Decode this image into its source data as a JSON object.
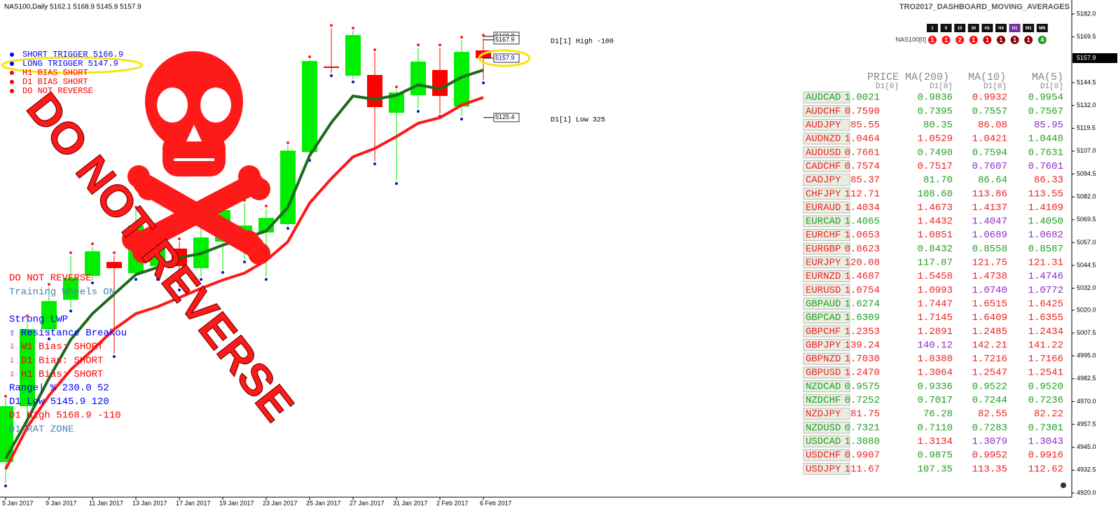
{
  "header": {
    "symbol": "NAS100,Daily  5162.1 5168.9 5145.9 5157.9",
    "indicator": "TRO2017_DASHBOARD_MOVING_AVERAGES"
  },
  "timeframes": {
    "labels": [
      "1",
      "5",
      "15",
      "30",
      "H1",
      "H4",
      "D1",
      "W1",
      "MN"
    ],
    "active": "D1",
    "symbol": "NAS100[0]",
    "signals": [
      {
        "text": "1",
        "color": "#ff1010"
      },
      {
        "text": "1",
        "color": "#ff1010"
      },
      {
        "text": "2",
        "color": "#ff1010"
      },
      {
        "text": "1",
        "color": "#ff1010"
      },
      {
        "text": "1",
        "color": "#d00000"
      },
      {
        "text": "1",
        "color": "#8b0000"
      },
      {
        "text": "1",
        "color": "#8b0000"
      },
      {
        "text": "1",
        "color": "#8b0000"
      },
      {
        "text": "4",
        "color": "#1a9a1a"
      }
    ]
  },
  "legend": [
    {
      "text": "SHORT TRIGGER 5166.9",
      "color": "#0000ff"
    },
    {
      "text": "LONG TRIGGER  5147.9",
      "color": "#0000ff"
    },
    {
      "text": "H1 BIAS SHORT",
      "color": "#ff0000"
    },
    {
      "text": "D1 BIAS SHORT",
      "color": "#ff0000"
    },
    {
      "text": "DO NOT REVERSE",
      "color": "#ff0000"
    }
  ],
  "warning": "DO NOT REVERSE",
  "info": [
    {
      "text": "DO NOT REVERSE",
      "color": "#ff0000"
    },
    {
      "text": "Training Wheels ON",
      "color": "#4682b4"
    },
    {
      "text": "Strong LWP",
      "color": "#0000ff"
    },
    {
      "text": "⇧ Resistance Breakou",
      "color": "#0000ff"
    },
    {
      "text": "⇩ W1 Bias: SHORT",
      "color": "#ff0000"
    },
    {
      "text": "⇩ D1 Bias: SHORT",
      "color": "#ff0000"
    },
    {
      "text": "⇩ H1 Bias: SHORT",
      "color": "#ff0000"
    },
    {
      "text": "Range| % 230.0    52",
      "color": "#0000ff"
    },
    {
      "text": "D1 Low   5145.9  120",
      "color": "#0000ff"
    },
    {
      "text": "D1 High  5168.9 -110",
      "color": "#ff0000"
    },
    {
      "text": "D1 RAT ZONE",
      "color": "#4682b4"
    }
  ],
  "chart": {
    "ylim": [
      4917.7,
      5189.7
    ],
    "yticks": [
      {
        "value": 5182,
        "label": "5182.0"
      },
      5169.5,
      5144.5,
      {
        "value": 5132,
        "label": "5132.0"
      },
      5119.5,
      {
        "value": 5107,
        "label": "5107.0"
      },
      5094.5,
      {
        "value": 5082,
        "label": "5082.0"
      },
      5069.5,
      {
        "value": 5057,
        "label": "5057.0"
      },
      5044.5,
      {
        "value": 5032,
        "label": "5032.0"
      },
      {
        "value": 5020,
        "label": "5020.0"
      },
      5007.5,
      {
        "value": 4995,
        "label": "4995.0"
      },
      4982.5,
      {
        "value": 4970,
        "label": "4970.0"
      },
      4957.5,
      {
        "value": 4945,
        "label": "4945.0"
      },
      4932.5,
      {
        "value": 4920,
        "label": "4920.0"
      }
    ],
    "bull_color": "#00ee00",
    "bear_color": "#ff0000",
    "candles": [
      {
        "open": 4936.9,
        "high": 4971.4,
        "low": 4925.4,
        "close": 4967.5
      },
      {
        "open": 4967.5,
        "high": 5015.4,
        "low": 4958.0,
        "close": 5009.6
      },
      {
        "open": 5009.6,
        "high": 5032.6,
        "low": 5005.8,
        "close": 5025.0
      },
      {
        "open": 5025.7,
        "high": 5049.9,
        "low": 5021.1,
        "close": 5037.6
      },
      {
        "open": 5038.8,
        "high": 5054.8,
        "low": 5036.5,
        "close": 5052.2
      },
      {
        "open": 5046.4,
        "high": 5049.9,
        "low": 4996.2,
        "close": 5043.0
      },
      {
        "open": 5040.3,
        "high": 5074.8,
        "low": 5038.4,
        "close": 5066.3
      },
      {
        "open": 5044.1,
        "high": 5059.4,
        "low": 5038.4,
        "close": 5053.7
      },
      {
        "open": 5053.7,
        "high": 5057.5,
        "low": 5032.6,
        "close": 5044.1
      },
      {
        "open": 5043.0,
        "high": 5067.1,
        "low": 5038.4,
        "close": 5059.8
      },
      {
        "open": 5057.5,
        "high": 5080.5,
        "low": 5042.2,
        "close": 5074.8
      },
      {
        "open": 5057.5,
        "high": 5078.6,
        "low": 5047.9,
        "close": 5066.3
      },
      {
        "open": 5062.5,
        "high": 5075.5,
        "low": 5038.4,
        "close": 5070.5
      },
      {
        "open": 5067.1,
        "high": 5110.0,
        "low": 5066.3,
        "close": 5107.3
      },
      {
        "open": 5106.5,
        "high": 5157.1,
        "low": 5103.5,
        "close": 5156.3
      },
      {
        "open": 5153.3,
        "high": 5174.3,
        "low": 5149.8,
        "close": 5152.9
      },
      {
        "open": 5148.3,
        "high": 5172.8,
        "low": 5146.4,
        "close": 5170.5
      },
      {
        "open": 5148.7,
        "high": 5160.9,
        "low": 5101.6,
        "close": 5131.1
      },
      {
        "open": 5128.0,
        "high": 5140.6,
        "low": 5090.8,
        "close": 5139.1
      },
      {
        "open": 5137.6,
        "high": 5163.6,
        "low": 5130.3,
        "close": 5156.0
      },
      {
        "open": 5151.4,
        "high": 5163.6,
        "low": 5127.6,
        "close": 5137.2
      },
      {
        "open": 5131.4,
        "high": 5167.8,
        "low": 5126.1,
        "close": 5161.3
      },
      {
        "open": 5162.1,
        "high": 5168.9,
        "low": 5145.9,
        "close": 5157.9
      }
    ],
    "dates": [
      "5 Jan 2017",
      null,
      "9 Jan 2017",
      null,
      "11 Jan 2017",
      null,
      "13 Jan 2017",
      null,
      "17 Jan 2017",
      null,
      "19 Jan 2017",
      null,
      "23 Jan 2017",
      null,
      "25 Jan 2017",
      null,
      "27 Jan 2017",
      null,
      "31 Jan 2017",
      null,
      "2 Feb 2017",
      null,
      "6 Feb 2017"
    ],
    "ma": [
      {
        "color": "#1c6b1c",
        "values": [
          4938.8,
          4959.9,
          4982.8,
          5003.9,
          5018.1,
          5028.8,
          5039.5,
          5043.4,
          5048.7,
          5051.0,
          5055.6,
          5059.4,
          5063.3,
          5076.3,
          5104.6,
          5122.6,
          5137.2,
          5135.3,
          5137.6,
          5143.3,
          5141.0,
          5147.5,
          5151.4
        ]
      },
      {
        "color": "#ff1818",
        "values": [
          4933.0,
          4956.0,
          4973.3,
          4987.4,
          4998.2,
          5009.6,
          5018.1,
          5021.9,
          5026.9,
          5031.9,
          5036.5,
          5040.3,
          5047.2,
          5057.5,
          5078.6,
          5092.0,
          5103.9,
          5108.5,
          5115.0,
          5122.3,
          5125.3,
          5132.2,
          5136.4
        ]
      }
    ],
    "levels": [
      5169.8,
      5167.9,
      5157.9,
      5125.4
    ],
    "current": 5157.9,
    "high_note": "D1[1] High  -100",
    "low_note": "D1[1] Low  325"
  },
  "dashboard": {
    "headers": [
      "PRICE",
      "MA(200)",
      "MA(10)",
      "MA(5)"
    ],
    "sub": "D1[0]",
    "rows": [
      {
        "pair": "AUDCAD",
        "cells": [
          "1.0021",
          "0.9836",
          "0.9932",
          "0.9954"
        ],
        "colors": [
          "#22a022",
          "#22a022",
          "#ee2222",
          "#22a022"
        ]
      },
      {
        "pair": "AUDCHF",
        "cells": [
          "0.7590",
          "0.7395",
          "0.7557",
          "0.7567"
        ],
        "colors": [
          "#ee2222",
          "#22a022",
          "#22a022",
          "#22a022"
        ]
      },
      {
        "pair": "AUDJPY",
        "cells": [
          "85.55",
          "80.35",
          "86.08",
          "85.95"
        ],
        "colors": [
          "#ee2222",
          "#22a022",
          "#ee2222",
          "#8b2fc9"
        ]
      },
      {
        "pair": "AUDNZD",
        "cells": [
          "1.0464",
          "1.0529",
          "1.0421",
          "1.0448"
        ],
        "colors": [
          "#ee2222",
          "#ee2222",
          "#ee2222",
          "#22a022"
        ]
      },
      {
        "pair": "AUDUSD",
        "cells": [
          "0.7661",
          "0.7490",
          "0.7594",
          "0.7631"
        ],
        "colors": [
          "#ee2222",
          "#22a022",
          "#22a022",
          "#22a022"
        ]
      },
      {
        "pair": "CADCHF",
        "cells": [
          "0.7574",
          "0.7517",
          "0.7607",
          "0.7601"
        ],
        "colors": [
          "#ee2222",
          "#ee2222",
          "#8b2fc9",
          "#8b2fc9"
        ]
      },
      {
        "pair": "CADJPY",
        "cells": [
          "85.37",
          "81.70",
          "86.64",
          "86.33"
        ],
        "colors": [
          "#ee2222",
          "#22a022",
          "#22a022",
          "#ee2222"
        ]
      },
      {
        "pair": "CHFJPY",
        "cells": [
          "112.71",
          "108.60",
          "113.86",
          "113.55"
        ],
        "colors": [
          "#ee2222",
          "#22a022",
          "#ee2222",
          "#ee2222"
        ]
      },
      {
        "pair": "EURAUD",
        "cells": [
          "1.4034",
          "1.4673",
          "1.4137",
          "1.4109"
        ],
        "colors": [
          "#ee2222",
          "#ee2222",
          "#ee2222",
          "#ee2222"
        ]
      },
      {
        "pair": "EURCAD",
        "cells": [
          "1.4065",
          "1.4432",
          "1.4047",
          "1.4050"
        ],
        "colors": [
          "#22a022",
          "#ee2222",
          "#8b2fc9",
          "#22a022"
        ]
      },
      {
        "pair": "EURCHF",
        "cells": [
          "1.0653",
          "1.0851",
          "1.0689",
          "1.0682"
        ],
        "colors": [
          "#ee2222",
          "#ee2222",
          "#8b2fc9",
          "#8b2fc9"
        ]
      },
      {
        "pair": "EURGBP",
        "cells": [
          "0.8623",
          "0.8432",
          "0.8558",
          "0.8587"
        ],
        "colors": [
          "#ee2222",
          "#22a022",
          "#22a022",
          "#22a022"
        ]
      },
      {
        "pair": "EURJPY",
        "cells": [
          "120.08",
          "117.87",
          "121.75",
          "121.31"
        ],
        "colors": [
          "#ee2222",
          "#22a022",
          "#ee2222",
          "#ee2222"
        ]
      },
      {
        "pair": "EURNZD",
        "cells": [
          "1.4687",
          "1.5458",
          "1.4738",
          "1.4746"
        ],
        "colors": [
          "#ee2222",
          "#ee2222",
          "#ee2222",
          "#8b2fc9"
        ]
      },
      {
        "pair": "EURUSD",
        "cells": [
          "1.0754",
          "1.0993",
          "1.0740",
          "1.0772"
        ],
        "colors": [
          "#ee2222",
          "#ee2222",
          "#8b2fc9",
          "#8b2fc9"
        ]
      },
      {
        "pair": "GBPAUD",
        "cells": [
          "1.6274",
          "1.7447",
          "1.6515",
          "1.6425"
        ],
        "colors": [
          "#22a022",
          "#ee2222",
          "#ee2222",
          "#ee2222"
        ]
      },
      {
        "pair": "GBPCAD",
        "cells": [
          "1.6309",
          "1.7145",
          "1.6409",
          "1.6355"
        ],
        "colors": [
          "#22a022",
          "#ee2222",
          "#ee2222",
          "#ee2222"
        ]
      },
      {
        "pair": "GBPCHF",
        "cells": [
          "1.2353",
          "1.2891",
          "1.2485",
          "1.2434"
        ],
        "colors": [
          "#ee2222",
          "#ee2222",
          "#ee2222",
          "#ee2222"
        ]
      },
      {
        "pair": "GBPJPY",
        "cells": [
          "139.24",
          "140.12",
          "142.21",
          "141.22"
        ],
        "colors": [
          "#ee2222",
          "#8b2fc9",
          "#ee2222",
          "#ee2222"
        ]
      },
      {
        "pair": "GBPNZD",
        "cells": [
          "1.7030",
          "1.8380",
          "1.7216",
          "1.7166"
        ],
        "colors": [
          "#ee2222",
          "#ee2222",
          "#ee2222",
          "#ee2222"
        ]
      },
      {
        "pair": "GBPUSD",
        "cells": [
          "1.2470",
          "1.3064",
          "1.2547",
          "1.2541"
        ],
        "colors": [
          "#ee2222",
          "#ee2222",
          "#ee2222",
          "#ee2222"
        ]
      },
      {
        "pair": "NZDCAD",
        "cells": [
          "0.9575",
          "0.9336",
          "0.9522",
          "0.9520"
        ],
        "colors": [
          "#22a022",
          "#22a022",
          "#22a022",
          "#22a022"
        ]
      },
      {
        "pair": "NZDCHF",
        "cells": [
          "0.7252",
          "0.7017",
          "0.7244",
          "0.7236"
        ],
        "colors": [
          "#22a022",
          "#22a022",
          "#22a022",
          "#22a022"
        ]
      },
      {
        "pair": "NZDJPY",
        "cells": [
          "81.75",
          "76.28",
          "82.55",
          "82.22"
        ],
        "colors": [
          "#ee2222",
          "#22a022",
          "#ee2222",
          "#ee2222"
        ]
      },
      {
        "pair": "NZDUSD",
        "cells": [
          "0.7321",
          "0.7110",
          "0.7283",
          "0.7301"
        ],
        "colors": [
          "#22a022",
          "#22a022",
          "#22a022",
          "#22a022"
        ]
      },
      {
        "pair": "USDCAD",
        "cells": [
          "1.3080",
          "1.3134",
          "1.3079",
          "1.3043"
        ],
        "colors": [
          "#22a022",
          "#ee2222",
          "#8b2fc9",
          "#8b2fc9"
        ]
      },
      {
        "pair": "USDCHF",
        "cells": [
          "0.9907",
          "0.9875",
          "0.9952",
          "0.9916"
        ],
        "colors": [
          "#ee2222",
          "#22a022",
          "#ee2222",
          "#ee2222"
        ]
      },
      {
        "pair": "USDJPY",
        "cells": [
          "111.67",
          "107.35",
          "113.35",
          "112.62"
        ],
        "colors": [
          "#ee2222",
          "#22a022",
          "#ee2222",
          "#ee2222"
        ]
      }
    ]
  }
}
